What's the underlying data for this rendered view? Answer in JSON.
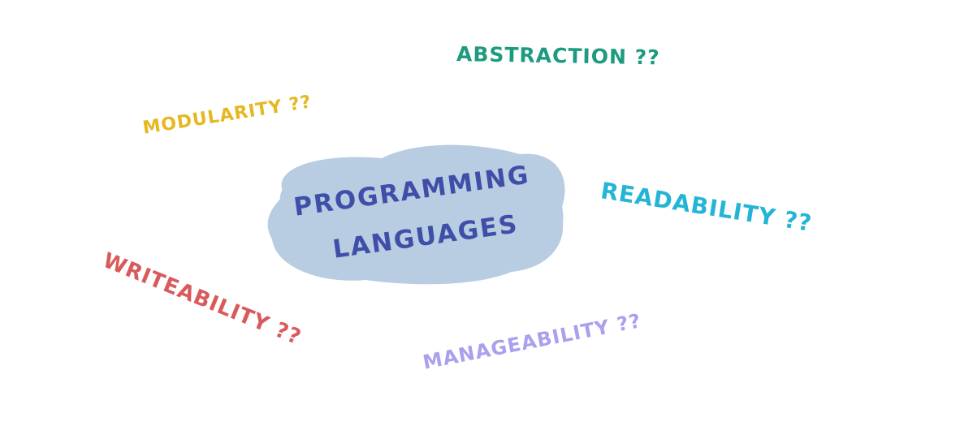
{
  "center": {
    "line1": "PROGRAMMING",
    "line2": "LANGUAGES",
    "text_color": "#3f4fa8",
    "blob_color": "#7fa3cc"
  },
  "concepts": [
    {
      "id": "abstraction",
      "label": "ABSTRACTION ??",
      "color": "#1e9b7f"
    },
    {
      "id": "modularity",
      "label": "MODULARITY ??",
      "color": "#e5b820"
    },
    {
      "id": "readability",
      "label": "READABILITY ??",
      "color": "#24b5d6"
    },
    {
      "id": "writeability",
      "label": "WRITEABILITY ??",
      "color": "#d95a5a"
    },
    {
      "id": "manageability",
      "label": "MANAGEABILITY ??",
      "color": "#a9a0ee"
    }
  ]
}
